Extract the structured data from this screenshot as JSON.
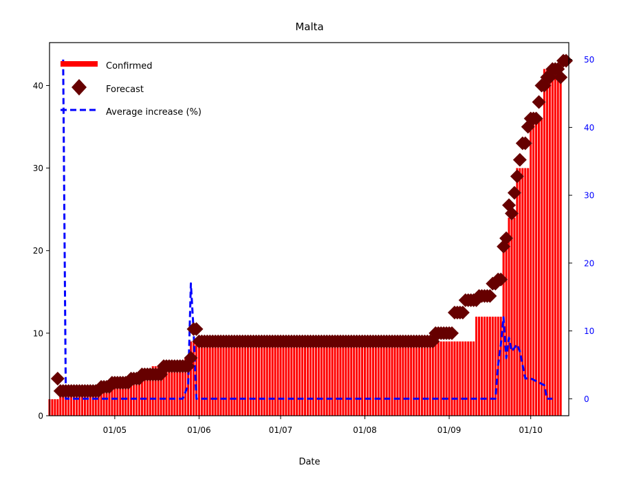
{
  "chart_data": {
    "type": "bar",
    "title": "Malta",
    "xlabel": "Date",
    "ylabel": "",
    "ylabel_right": "",
    "x_range": [
      "2020-04-07",
      "2020-10-15"
    ],
    "ylim": [
      0,
      45.2
    ],
    "ylim_right": [
      -2.5,
      52.5
    ],
    "x_ticks": [
      "01/05",
      "01/06",
      "01/07",
      "01/08",
      "01/09",
      "01/10"
    ],
    "x_tick_dates": [
      "2020-05-01",
      "2020-06-01",
      "2020-07-01",
      "2020-08-01",
      "2020-09-01",
      "2020-10-01"
    ],
    "y_ticks": [
      0,
      10,
      20,
      30,
      40
    ],
    "y_ticks_right": [
      0,
      10,
      20,
      30,
      40,
      50
    ],
    "legend": {
      "position": "upper-left",
      "entries": [
        "Confirmed",
        "Forecast",
        "Average increase (%)"
      ]
    },
    "colors": {
      "confirmed": "#ff0000",
      "forecast": "#660000",
      "average_increase": "#0000ff",
      "right_axis_ticks": "#0000ff"
    },
    "series": [
      {
        "name": "Confirmed",
        "kind": "bar",
        "points": [
          [
            "2020-04-07",
            2
          ],
          [
            "2020-04-10",
            2
          ],
          [
            "2020-04-11",
            3
          ],
          [
            "2020-04-15",
            3
          ],
          [
            "2020-04-16",
            3
          ],
          [
            "2020-04-25",
            3
          ],
          [
            "2020-04-26",
            4
          ],
          [
            "2020-05-06",
            4
          ],
          [
            "2020-05-07",
            5
          ],
          [
            "2020-05-14",
            5
          ],
          [
            "2020-05-15",
            6
          ],
          [
            "2020-05-26",
            6
          ],
          [
            "2020-05-27",
            7
          ],
          [
            "2020-05-29",
            9
          ],
          [
            "2020-09-10",
            9
          ],
          [
            "2020-09-11",
            12
          ],
          [
            "2020-09-20",
            12
          ],
          [
            "2020-09-21",
            20
          ],
          [
            "2020-09-22",
            22
          ],
          [
            "2020-09-23",
            24
          ],
          [
            "2020-09-26",
            30
          ],
          [
            "2020-10-01",
            36
          ],
          [
            "2020-10-06",
            42
          ],
          [
            "2020-10-12",
            43
          ]
        ]
      },
      {
        "name": "Forecast",
        "kind": "scatter",
        "points": [
          [
            "2020-04-10",
            4.5
          ],
          [
            "2020-04-11",
            3
          ],
          [
            "2020-04-14",
            3
          ],
          [
            "2020-04-22",
            3
          ],
          [
            "2020-04-26",
            3.5
          ],
          [
            "2020-04-30",
            4
          ],
          [
            "2020-05-04",
            4
          ],
          [
            "2020-05-07",
            4.5
          ],
          [
            "2020-05-11",
            5
          ],
          [
            "2020-05-15",
            5
          ],
          [
            "2020-05-19",
            6
          ],
          [
            "2020-05-23",
            6
          ],
          [
            "2020-05-27",
            6
          ],
          [
            "2020-05-29",
            7
          ],
          [
            "2020-05-30",
            10.5
          ],
          [
            "2020-06-01",
            9
          ],
          [
            "2020-06-20",
            9
          ],
          [
            "2020-07-15",
            9
          ],
          [
            "2020-08-10",
            9
          ],
          [
            "2020-08-20",
            9
          ],
          [
            "2020-08-27",
            10
          ],
          [
            "2020-08-31",
            10
          ],
          [
            "2020-09-03",
            12.5
          ],
          [
            "2020-09-07",
            14
          ],
          [
            "2020-09-12",
            14.5
          ],
          [
            "2020-09-17",
            16
          ],
          [
            "2020-09-19",
            16.5
          ],
          [
            "2020-09-21",
            20.5
          ],
          [
            "2020-09-22",
            21.5
          ],
          [
            "2020-09-23",
            25.5
          ],
          [
            "2020-09-24",
            24.5
          ],
          [
            "2020-09-25",
            27
          ],
          [
            "2020-09-26",
            29
          ],
          [
            "2020-09-27",
            31
          ],
          [
            "2020-09-28",
            33
          ],
          [
            "2020-09-29",
            33
          ],
          [
            "2020-09-30",
            35
          ],
          [
            "2020-10-01",
            36
          ],
          [
            "2020-10-04",
            38
          ],
          [
            "2020-10-05",
            40
          ],
          [
            "2020-10-07",
            41
          ],
          [
            "2020-10-09",
            42
          ],
          [
            "2020-10-12",
            41
          ],
          [
            "2020-10-13",
            43
          ],
          [
            "2020-10-14",
            43
          ]
        ]
      },
      {
        "name": "Average increase (%)",
        "kind": "line",
        "axis": "right",
        "points": [
          [
            "2020-04-12",
            50
          ],
          [
            "2020-04-13",
            0
          ],
          [
            "2020-05-26",
            0
          ],
          [
            "2020-05-28",
            2
          ],
          [
            "2020-05-29",
            17
          ],
          [
            "2020-05-30",
            10
          ],
          [
            "2020-05-31",
            0
          ],
          [
            "2020-09-18",
            0
          ],
          [
            "2020-09-19",
            5
          ],
          [
            "2020-09-20",
            8
          ],
          [
            "2020-09-21",
            12
          ],
          [
            "2020-09-22",
            6
          ],
          [
            "2020-09-23",
            9
          ],
          [
            "2020-09-24",
            7
          ],
          [
            "2020-09-26",
            8
          ],
          [
            "2020-09-27",
            7
          ],
          [
            "2020-09-29",
            3
          ],
          [
            "2020-10-01",
            3
          ],
          [
            "2020-10-06",
            2
          ],
          [
            "2020-10-07",
            0
          ],
          [
            "2020-10-09",
            0
          ]
        ]
      }
    ]
  }
}
